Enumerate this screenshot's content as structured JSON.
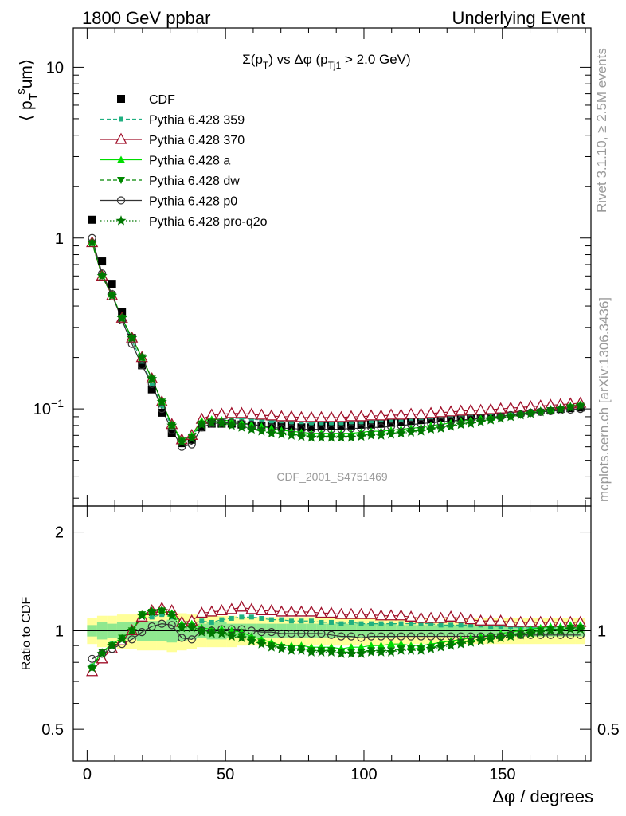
{
  "header": {
    "left": "1800 GeV ppbar",
    "right": "Underlying Event"
  },
  "side_labels": {
    "rivet": "Rivet 3.1.10, ≥ 2.5M events",
    "mcplots": "mcplots.cern.ch [arXiv:1306.3436]"
  },
  "watermark": "CDF_2001_S4751469",
  "chart_data": [
    {
      "type": "scatter",
      "title": "Σ(p_T) vs Δφ (p_Tj1 > 2.0 GeV)",
      "ylabel": "⟨ p_T^s um⟩",
      "xlabel": "Δφ / degrees",
      "xlim": [
        -5,
        182
      ],
      "ylim": [
        0.027,
        17
      ],
      "yscale": "log",
      "grid": false,
      "legend_position": "top-left",
      "x_ticks": [
        "0",
        "50",
        "100",
        "150"
      ],
      "y_ticks": [
        "10^-1",
        "1",
        "10"
      ],
      "x": [
        1.8,
        5.4,
        9.0,
        12.6,
        16.2,
        19.8,
        23.4,
        27.0,
        30.6,
        34.2,
        37.8,
        41.4,
        45.0,
        48.6,
        52.2,
        55.8,
        59.4,
        63.0,
        66.6,
        70.2,
        73.8,
        77.4,
        81.0,
        84.6,
        88.2,
        91.8,
        95.4,
        99.0,
        102.6,
        106.2,
        109.8,
        113.4,
        117.0,
        120.6,
        124.2,
        127.8,
        131.4,
        135.0,
        138.6,
        142.2,
        145.8,
        149.4,
        153.0,
        156.6,
        160.2,
        163.8,
        167.4,
        171.0,
        174.6,
        178.2
      ],
      "series": [
        {
          "name": "CDF",
          "color": "#000000",
          "marker": "square",
          "values": [
            1.28,
            0.73,
            0.54,
            0.37,
            0.26,
            0.18,
            0.13,
            0.095,
            0.072,
            0.063,
            0.066,
            0.078,
            0.082,
            0.082,
            0.082,
            0.081,
            0.08,
            0.08,
            0.079,
            0.079,
            0.079,
            0.078,
            0.078,
            0.079,
            0.079,
            0.08,
            0.08,
            0.081,
            0.081,
            0.082,
            0.083,
            0.084,
            0.085,
            0.086,
            0.087,
            0.088,
            0.089,
            0.09,
            0.091,
            0.092,
            0.093,
            0.094,
            0.095,
            0.096,
            0.097,
            0.098,
            0.099,
            0.1,
            0.101,
            0.102
          ]
        },
        {
          "name": "Pythia 6.428 359",
          "color": "#20b080",
          "marker": "small-square",
          "dash": "dashed",
          "values": [
            0.95,
            0.61,
            0.47,
            0.34,
            0.25,
            0.19,
            0.14,
            0.105,
            0.078,
            0.065,
            0.069,
            0.082,
            0.086,
            0.087,
            0.088,
            0.088,
            0.087,
            0.086,
            0.085,
            0.085,
            0.084,
            0.084,
            0.083,
            0.083,
            0.083,
            0.083,
            0.084,
            0.084,
            0.085,
            0.086,
            0.086,
            0.087,
            0.088,
            0.089,
            0.09,
            0.091,
            0.092,
            0.093,
            0.094,
            0.095,
            0.095,
            0.096,
            0.097,
            0.098,
            0.099,
            0.1,
            0.101,
            0.102,
            0.103,
            0.104
          ]
        },
        {
          "name": "Pythia 6.428 370",
          "color": "#a0102a",
          "marker": "open-triangle",
          "dash": "solid",
          "values": [
            0.94,
            0.6,
            0.46,
            0.34,
            0.26,
            0.2,
            0.15,
            0.11,
            0.081,
            0.066,
            0.07,
            0.087,
            0.092,
            0.093,
            0.094,
            0.094,
            0.093,
            0.092,
            0.091,
            0.09,
            0.09,
            0.089,
            0.089,
            0.089,
            0.089,
            0.089,
            0.09,
            0.09,
            0.091,
            0.091,
            0.092,
            0.092,
            0.093,
            0.093,
            0.094,
            0.095,
            0.096,
            0.097,
            0.098,
            0.098,
            0.099,
            0.1,
            0.101,
            0.102,
            0.103,
            0.104,
            0.105,
            0.106,
            0.107,
            0.108
          ]
        },
        {
          "name": "Pythia 6.428 a",
          "color": "#00dd00",
          "marker": "triangle",
          "dash": "solid",
          "values": [
            0.95,
            0.61,
            0.47,
            0.34,
            0.26,
            0.2,
            0.15,
            0.11,
            0.081,
            0.066,
            0.07,
            0.085,
            0.087,
            0.086,
            0.085,
            0.083,
            0.081,
            0.079,
            0.077,
            0.075,
            0.074,
            0.073,
            0.072,
            0.072,
            0.072,
            0.072,
            0.072,
            0.073,
            0.074,
            0.074,
            0.075,
            0.076,
            0.077,
            0.078,
            0.08,
            0.081,
            0.083,
            0.085,
            0.086,
            0.088,
            0.089,
            0.091,
            0.092,
            0.094,
            0.096,
            0.098,
            0.1,
            0.102,
            0.104,
            0.106
          ]
        },
        {
          "name": "Pythia 6.428 dw",
          "color": "#008800",
          "marker": "inverted-triangle",
          "dash": "dashed",
          "values": [
            0.93,
            0.6,
            0.46,
            0.34,
            0.26,
            0.2,
            0.15,
            0.11,
            0.08,
            0.065,
            0.068,
            0.082,
            0.084,
            0.083,
            0.081,
            0.079,
            0.077,
            0.075,
            0.073,
            0.072,
            0.071,
            0.07,
            0.069,
            0.069,
            0.069,
            0.069,
            0.069,
            0.07,
            0.071,
            0.071,
            0.072,
            0.073,
            0.074,
            0.075,
            0.077,
            0.078,
            0.08,
            0.082,
            0.083,
            0.085,
            0.087,
            0.089,
            0.09,
            0.092,
            0.094,
            0.096,
            0.098,
            0.1,
            0.102,
            0.104
          ]
        },
        {
          "name": "Pythia 6.428 p0",
          "color": "#333333",
          "marker": "open-circle",
          "dash": "solid",
          "values": [
            1.0,
            0.62,
            0.47,
            0.33,
            0.24,
            0.18,
            0.14,
            0.1,
            0.075,
            0.06,
            0.062,
            0.078,
            0.082,
            0.083,
            0.083,
            0.082,
            0.081,
            0.08,
            0.078,
            0.077,
            0.077,
            0.076,
            0.076,
            0.076,
            0.076,
            0.076,
            0.077,
            0.077,
            0.078,
            0.078,
            0.079,
            0.08,
            0.081,
            0.082,
            0.083,
            0.084,
            0.085,
            0.086,
            0.087,
            0.088,
            0.089,
            0.09,
            0.092,
            0.093,
            0.095,
            0.096,
            0.097,
            0.098,
            0.099,
            0.1
          ]
        },
        {
          "name": "Pythia 6.428 pro-q2o",
          "color": "#007700",
          "marker": "star",
          "dash": "dotted",
          "values": [
            0.94,
            0.6,
            0.46,
            0.34,
            0.26,
            0.2,
            0.15,
            0.11,
            0.08,
            0.064,
            0.067,
            0.081,
            0.083,
            0.082,
            0.08,
            0.078,
            0.076,
            0.074,
            0.072,
            0.071,
            0.07,
            0.069,
            0.068,
            0.068,
            0.068,
            0.068,
            0.068,
            0.069,
            0.07,
            0.07,
            0.071,
            0.072,
            0.073,
            0.074,
            0.076,
            0.077,
            0.079,
            0.081,
            0.082,
            0.084,
            0.086,
            0.088,
            0.09,
            0.092,
            0.094,
            0.096,
            0.098,
            0.1,
            0.102,
            0.104
          ]
        }
      ]
    },
    {
      "type": "scatter",
      "title": "",
      "ylabel": "Ratio to CDF",
      "xlabel": "Δφ / degrees",
      "xlim": [
        -5,
        182
      ],
      "ylim": [
        0.4,
        2.4
      ],
      "yscale": "log",
      "y_ticks_left": [
        "0.5",
        "1",
        "2"
      ],
      "y_ticks_right": [
        "0.5",
        "1"
      ],
      "band_inner_halfwidth": [
        0.04,
        0.06,
        0.05,
        0.06,
        0.06,
        0.07,
        0.07,
        0.07,
        0.08,
        0.07,
        0.06,
        0.05,
        0.06,
        0.06,
        0.05,
        0.05,
        0.05,
        0.05,
        0.05,
        0.05,
        0.05,
        0.05,
        0.05,
        0.05,
        0.05,
        0.05,
        0.05,
        0.05,
        0.05,
        0.05,
        0.05,
        0.04,
        0.04,
        0.04,
        0.04,
        0.04,
        0.04,
        0.04,
        0.04,
        0.04,
        0.04,
        0.04,
        0.04,
        0.04,
        0.04,
        0.04,
        0.04,
        0.04,
        0.04,
        0.04
      ],
      "band_outer_halfwidth": [
        0.09,
        0.11,
        0.11,
        0.12,
        0.12,
        0.13,
        0.13,
        0.13,
        0.14,
        0.13,
        0.12,
        0.11,
        0.11,
        0.11,
        0.11,
        0.1,
        0.1,
        0.1,
        0.1,
        0.1,
        0.1,
        0.1,
        0.1,
        0.1,
        0.1,
        0.1,
        0.1,
        0.1,
        0.1,
        0.1,
        0.1,
        0.09,
        0.09,
        0.09,
        0.09,
        0.09,
        0.09,
        0.09,
        0.09,
        0.09,
        0.09,
        0.09,
        0.09,
        0.09,
        0.09,
        0.09,
        0.09,
        0.09,
        0.09,
        0.09
      ],
      "series": [
        {
          "name": "Pythia 6.428 359",
          "values": [
            0.78,
            0.86,
            0.91,
            0.95,
            1.0,
            1.09,
            1.1,
            1.12,
            1.1,
            1.05,
            1.05,
            1.07,
            1.06,
            1.08,
            1.09,
            1.1,
            1.1,
            1.09,
            1.08,
            1.08,
            1.07,
            1.07,
            1.07,
            1.06,
            1.06,
            1.05,
            1.06,
            1.05,
            1.05,
            1.05,
            1.05,
            1.05,
            1.05,
            1.05,
            1.05,
            1.04,
            1.04,
            1.04,
            1.04,
            1.04,
            1.03,
            1.03,
            1.03,
            1.02,
            1.02,
            1.02,
            1.02,
            1.02,
            1.02,
            1.02
          ]
        },
        {
          "name": "Pythia 6.428 370",
          "values": [
            0.75,
            0.82,
            0.88,
            0.93,
            1.0,
            1.1,
            1.15,
            1.17,
            1.15,
            1.06,
            1.07,
            1.13,
            1.14,
            1.15,
            1.16,
            1.18,
            1.16,
            1.15,
            1.15,
            1.14,
            1.14,
            1.14,
            1.14,
            1.13,
            1.13,
            1.12,
            1.12,
            1.12,
            1.12,
            1.11,
            1.11,
            1.11,
            1.1,
            1.09,
            1.09,
            1.09,
            1.1,
            1.09,
            1.08,
            1.07,
            1.07,
            1.07,
            1.06,
            1.06,
            1.06,
            1.06,
            1.06,
            1.06,
            1.06,
            1.06
          ]
        },
        {
          "name": "Pythia 6.428 a",
          "values": [
            0.78,
            0.86,
            0.91,
            0.95,
            1.0,
            1.12,
            1.15,
            1.16,
            1.13,
            1.05,
            1.05,
            1.02,
            1.01,
            1.01,
            1.0,
            0.99,
            0.96,
            0.94,
            0.92,
            0.9,
            0.9,
            0.9,
            0.89,
            0.89,
            0.89,
            0.88,
            0.89,
            0.89,
            0.9,
            0.9,
            0.91,
            0.91,
            0.9,
            0.9,
            0.91,
            0.92,
            0.93,
            0.94,
            0.95,
            0.96,
            0.97,
            0.98,
            0.99,
            1.0,
            1.01,
            1.02,
            1.03,
            1.03,
            1.04,
            1.04
          ]
        },
        {
          "name": "Pythia 6.428 dw",
          "values": [
            0.77,
            0.86,
            0.9,
            0.95,
            1.0,
            1.12,
            1.14,
            1.15,
            1.12,
            1.03,
            1.03,
            1.0,
            0.99,
            0.99,
            0.97,
            0.96,
            0.94,
            0.92,
            0.9,
            0.89,
            0.88,
            0.88,
            0.87,
            0.87,
            0.87,
            0.86,
            0.86,
            0.86,
            0.87,
            0.87,
            0.87,
            0.88,
            0.88,
            0.88,
            0.89,
            0.9,
            0.91,
            0.92,
            0.93,
            0.94,
            0.95,
            0.96,
            0.97,
            0.98,
            0.99,
            1.0,
            1.01,
            1.01,
            1.02,
            1.02
          ]
        },
        {
          "name": "Pythia 6.428 p0",
          "values": [
            0.82,
            0.85,
            0.88,
            0.91,
            0.94,
            0.99,
            1.03,
            1.05,
            1.04,
            0.95,
            0.94,
            1.0,
            1.0,
            1.01,
            1.01,
            1.01,
            1.0,
            0.99,
            0.99,
            0.98,
            0.98,
            0.98,
            0.98,
            0.98,
            0.97,
            0.96,
            0.96,
            0.95,
            0.96,
            0.96,
            0.96,
            0.96,
            0.96,
            0.96,
            0.96,
            0.96,
            0.96,
            0.96,
            0.96,
            0.96,
            0.96,
            0.96,
            0.97,
            0.97,
            0.97,
            0.97,
            0.97,
            0.97,
            0.97,
            0.97
          ]
        },
        {
          "name": "Pythia 6.428 pro-q2o",
          "values": [
            0.77,
            0.85,
            0.9,
            0.94,
            1.0,
            1.11,
            1.14,
            1.15,
            1.11,
            1.02,
            1.02,
            0.99,
            0.98,
            0.98,
            0.96,
            0.95,
            0.93,
            0.91,
            0.89,
            0.88,
            0.87,
            0.87,
            0.86,
            0.86,
            0.86,
            0.85,
            0.85,
            0.85,
            0.86,
            0.86,
            0.86,
            0.87,
            0.87,
            0.87,
            0.88,
            0.89,
            0.9,
            0.91,
            0.92,
            0.93,
            0.94,
            0.95,
            0.96,
            0.97,
            0.98,
            0.99,
            1.0,
            1.0,
            1.01,
            1.01
          ]
        }
      ]
    }
  ]
}
